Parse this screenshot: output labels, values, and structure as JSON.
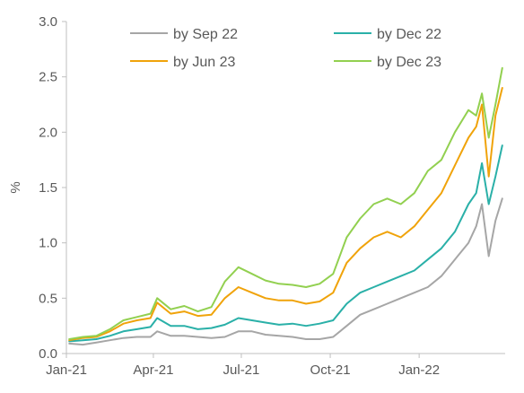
{
  "chart_data": {
    "type": "line",
    "title": "",
    "xlabel": "",
    "ylabel": "%",
    "ylim": [
      0,
      3.0
    ],
    "yticks": [
      "0.0",
      "0.5",
      "1.0",
      "1.5",
      "2.0",
      "2.5",
      "3.0"
    ],
    "xticks": [
      "Jan-21",
      "Apr-21",
      "Jul-21",
      "Oct-21",
      "Jan-22"
    ],
    "xtick_dates": [
      "2021-01-01",
      "2021-04-01",
      "2021-07-01",
      "2021-10-01",
      "2022-01-01"
    ],
    "xlim": [
      "2021-01-01",
      "2022-03-31"
    ],
    "grid": false,
    "legend": "top",
    "series": [
      {
        "name": "by Sep 22",
        "color": "#a6a6a6",
        "x": [
          "2021-01-04",
          "2021-01-18",
          "2021-02-01",
          "2021-02-15",
          "2021-03-01",
          "2021-03-15",
          "2021-03-29",
          "2021-04-05",
          "2021-04-19",
          "2021-05-03",
          "2021-05-17",
          "2021-05-31",
          "2021-06-14",
          "2021-06-28",
          "2021-07-12",
          "2021-07-26",
          "2021-08-09",
          "2021-08-23",
          "2021-09-06",
          "2021-09-20",
          "2021-10-04",
          "2021-10-18",
          "2021-11-01",
          "2021-11-15",
          "2021-11-29",
          "2021-12-13",
          "2021-12-27",
          "2022-01-10",
          "2022-01-24",
          "2022-02-07",
          "2022-02-21",
          "2022-03-01",
          "2022-03-07",
          "2022-03-14",
          "2022-03-21",
          "2022-03-28"
        ],
        "values": [
          0.09,
          0.08,
          0.1,
          0.12,
          0.14,
          0.15,
          0.15,
          0.2,
          0.16,
          0.16,
          0.15,
          0.14,
          0.15,
          0.2,
          0.2,
          0.17,
          0.16,
          0.15,
          0.13,
          0.13,
          0.15,
          0.25,
          0.35,
          0.4,
          0.45,
          0.5,
          0.55,
          0.6,
          0.7,
          0.85,
          1.0,
          1.15,
          1.35,
          0.88,
          1.2,
          1.4
        ]
      },
      {
        "name": "by Dec 22",
        "color": "#2ab0a8",
        "x": [
          "2021-01-04",
          "2021-01-18",
          "2021-02-01",
          "2021-02-15",
          "2021-03-01",
          "2021-03-15",
          "2021-03-29",
          "2021-04-05",
          "2021-04-19",
          "2021-05-03",
          "2021-05-17",
          "2021-05-31",
          "2021-06-14",
          "2021-06-28",
          "2021-07-12",
          "2021-07-26",
          "2021-08-09",
          "2021-08-23",
          "2021-09-06",
          "2021-09-20",
          "2021-10-04",
          "2021-10-18",
          "2021-11-01",
          "2021-11-15",
          "2021-11-29",
          "2021-12-13",
          "2021-12-27",
          "2022-01-10",
          "2022-01-24",
          "2022-02-07",
          "2022-02-21",
          "2022-03-01",
          "2022-03-07",
          "2022-03-14",
          "2022-03-21",
          "2022-03-28"
        ],
        "values": [
          0.11,
          0.12,
          0.13,
          0.16,
          0.2,
          0.22,
          0.24,
          0.32,
          0.25,
          0.25,
          0.22,
          0.23,
          0.26,
          0.32,
          0.3,
          0.28,
          0.26,
          0.27,
          0.25,
          0.27,
          0.3,
          0.45,
          0.55,
          0.6,
          0.65,
          0.7,
          0.75,
          0.85,
          0.95,
          1.1,
          1.35,
          1.45,
          1.72,
          1.35,
          1.6,
          1.88
        ]
      },
      {
        "name": "by Jun 23",
        "color": "#f0a30a",
        "x": [
          "2021-01-04",
          "2021-01-18",
          "2021-02-01",
          "2021-02-15",
          "2021-03-01",
          "2021-03-15",
          "2021-03-29",
          "2021-04-05",
          "2021-04-19",
          "2021-05-03",
          "2021-05-17",
          "2021-05-31",
          "2021-06-14",
          "2021-06-28",
          "2021-07-12",
          "2021-07-26",
          "2021-08-09",
          "2021-08-23",
          "2021-09-06",
          "2021-09-20",
          "2021-10-04",
          "2021-10-18",
          "2021-11-01",
          "2021-11-15",
          "2021-11-29",
          "2021-12-13",
          "2021-12-27",
          "2022-01-10",
          "2022-01-24",
          "2022-02-07",
          "2022-02-21",
          "2022-03-01",
          "2022-03-07",
          "2022-03-14",
          "2022-03-21",
          "2022-03-28"
        ],
        "values": [
          0.12,
          0.14,
          0.15,
          0.2,
          0.27,
          0.3,
          0.32,
          0.46,
          0.36,
          0.38,
          0.34,
          0.35,
          0.5,
          0.6,
          0.55,
          0.5,
          0.48,
          0.48,
          0.45,
          0.47,
          0.55,
          0.82,
          0.95,
          1.05,
          1.1,
          1.05,
          1.15,
          1.3,
          1.45,
          1.7,
          1.95,
          2.05,
          2.25,
          1.6,
          2.15,
          2.4
        ]
      },
      {
        "name": "by Dec 23",
        "color": "#92d050",
        "x": [
          "2021-01-04",
          "2021-01-18",
          "2021-02-01",
          "2021-02-15",
          "2021-03-01",
          "2021-03-15",
          "2021-03-29",
          "2021-04-05",
          "2021-04-19",
          "2021-05-03",
          "2021-05-17",
          "2021-05-31",
          "2021-06-14",
          "2021-06-28",
          "2021-07-12",
          "2021-07-26",
          "2021-08-09",
          "2021-08-23",
          "2021-09-06",
          "2021-09-20",
          "2021-10-04",
          "2021-10-18",
          "2021-11-01",
          "2021-11-15",
          "2021-11-29",
          "2021-12-13",
          "2021-12-27",
          "2022-01-10",
          "2022-01-24",
          "2022-02-07",
          "2022-02-21",
          "2022-03-01",
          "2022-03-07",
          "2022-03-14",
          "2022-03-21",
          "2022-03-28"
        ],
        "values": [
          0.13,
          0.15,
          0.16,
          0.22,
          0.3,
          0.33,
          0.36,
          0.5,
          0.4,
          0.43,
          0.38,
          0.42,
          0.65,
          0.78,
          0.72,
          0.66,
          0.63,
          0.62,
          0.6,
          0.63,
          0.72,
          1.05,
          1.22,
          1.35,
          1.4,
          1.35,
          1.45,
          1.65,
          1.75,
          2.0,
          2.2,
          2.15,
          2.35,
          1.95,
          2.25,
          2.58
        ]
      }
    ]
  }
}
